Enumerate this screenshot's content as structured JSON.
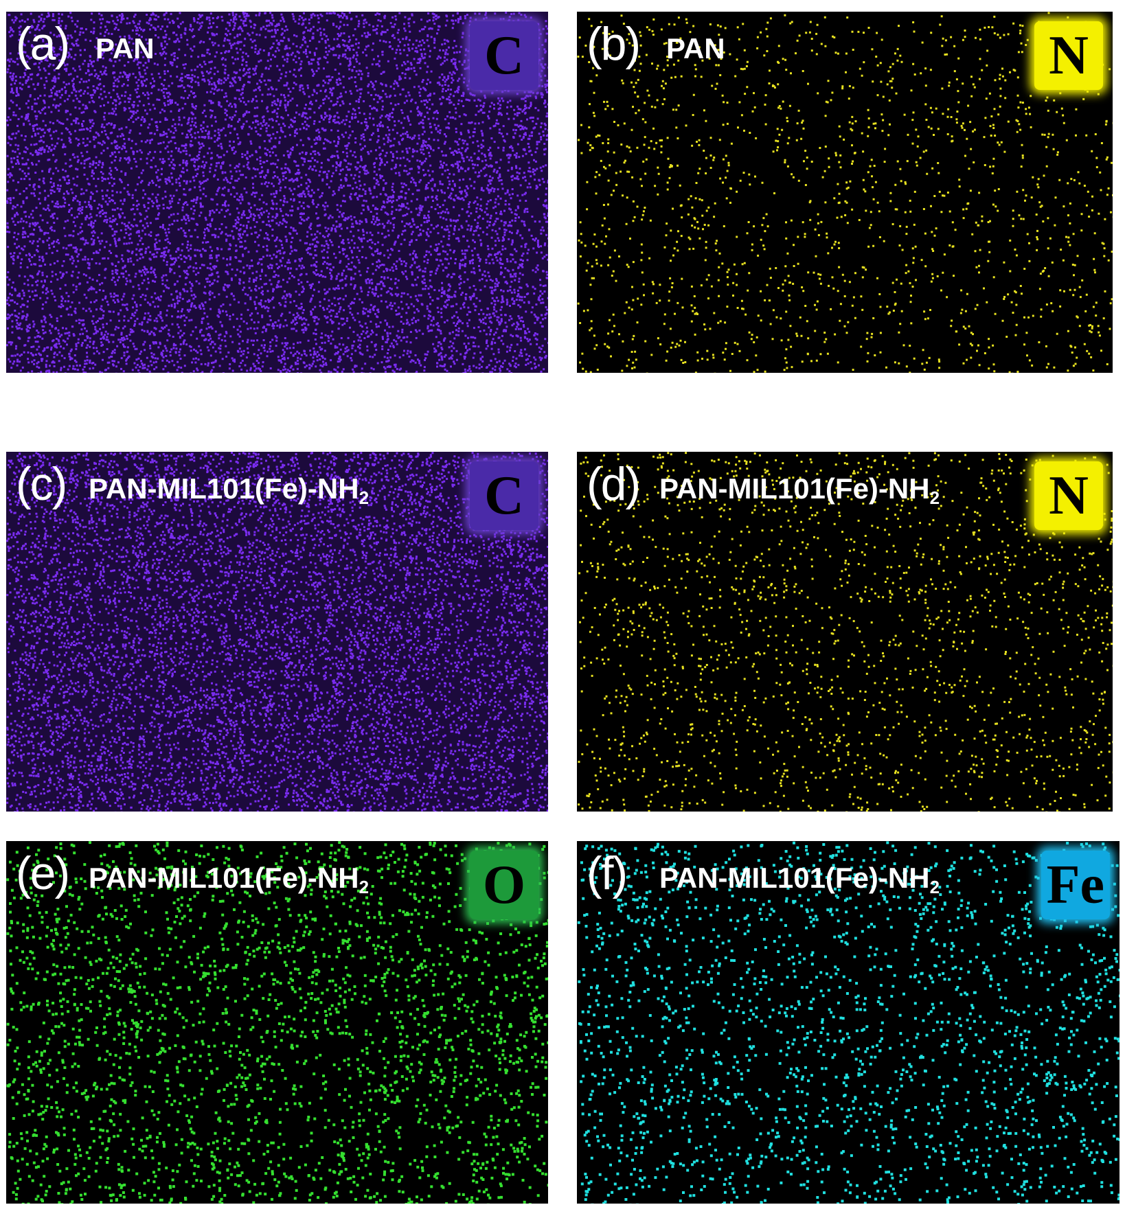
{
  "panels": [
    {
      "letter": "(a)",
      "sample": "PAN",
      "subscript": null,
      "element": "C"
    },
    {
      "letter": "(b)",
      "sample": "PAN",
      "subscript": null,
      "element": "N"
    },
    {
      "letter": "(c)",
      "sample": "PAN-MIL101(Fe)-NH",
      "subscript": "2",
      "element": "C"
    },
    {
      "letter": "(d)",
      "sample": "PAN-MIL101(Fe)-NH",
      "subscript": "2",
      "element": "N"
    },
    {
      "letter": "(e)",
      "sample": "PAN-MIL101(Fe)-NH",
      "subscript": "2",
      "element": "O"
    },
    {
      "letter": "(f)",
      "sample": "PAN-MIL101(Fe)-NH",
      "subscript": "2",
      "element": "Fe"
    }
  ]
}
